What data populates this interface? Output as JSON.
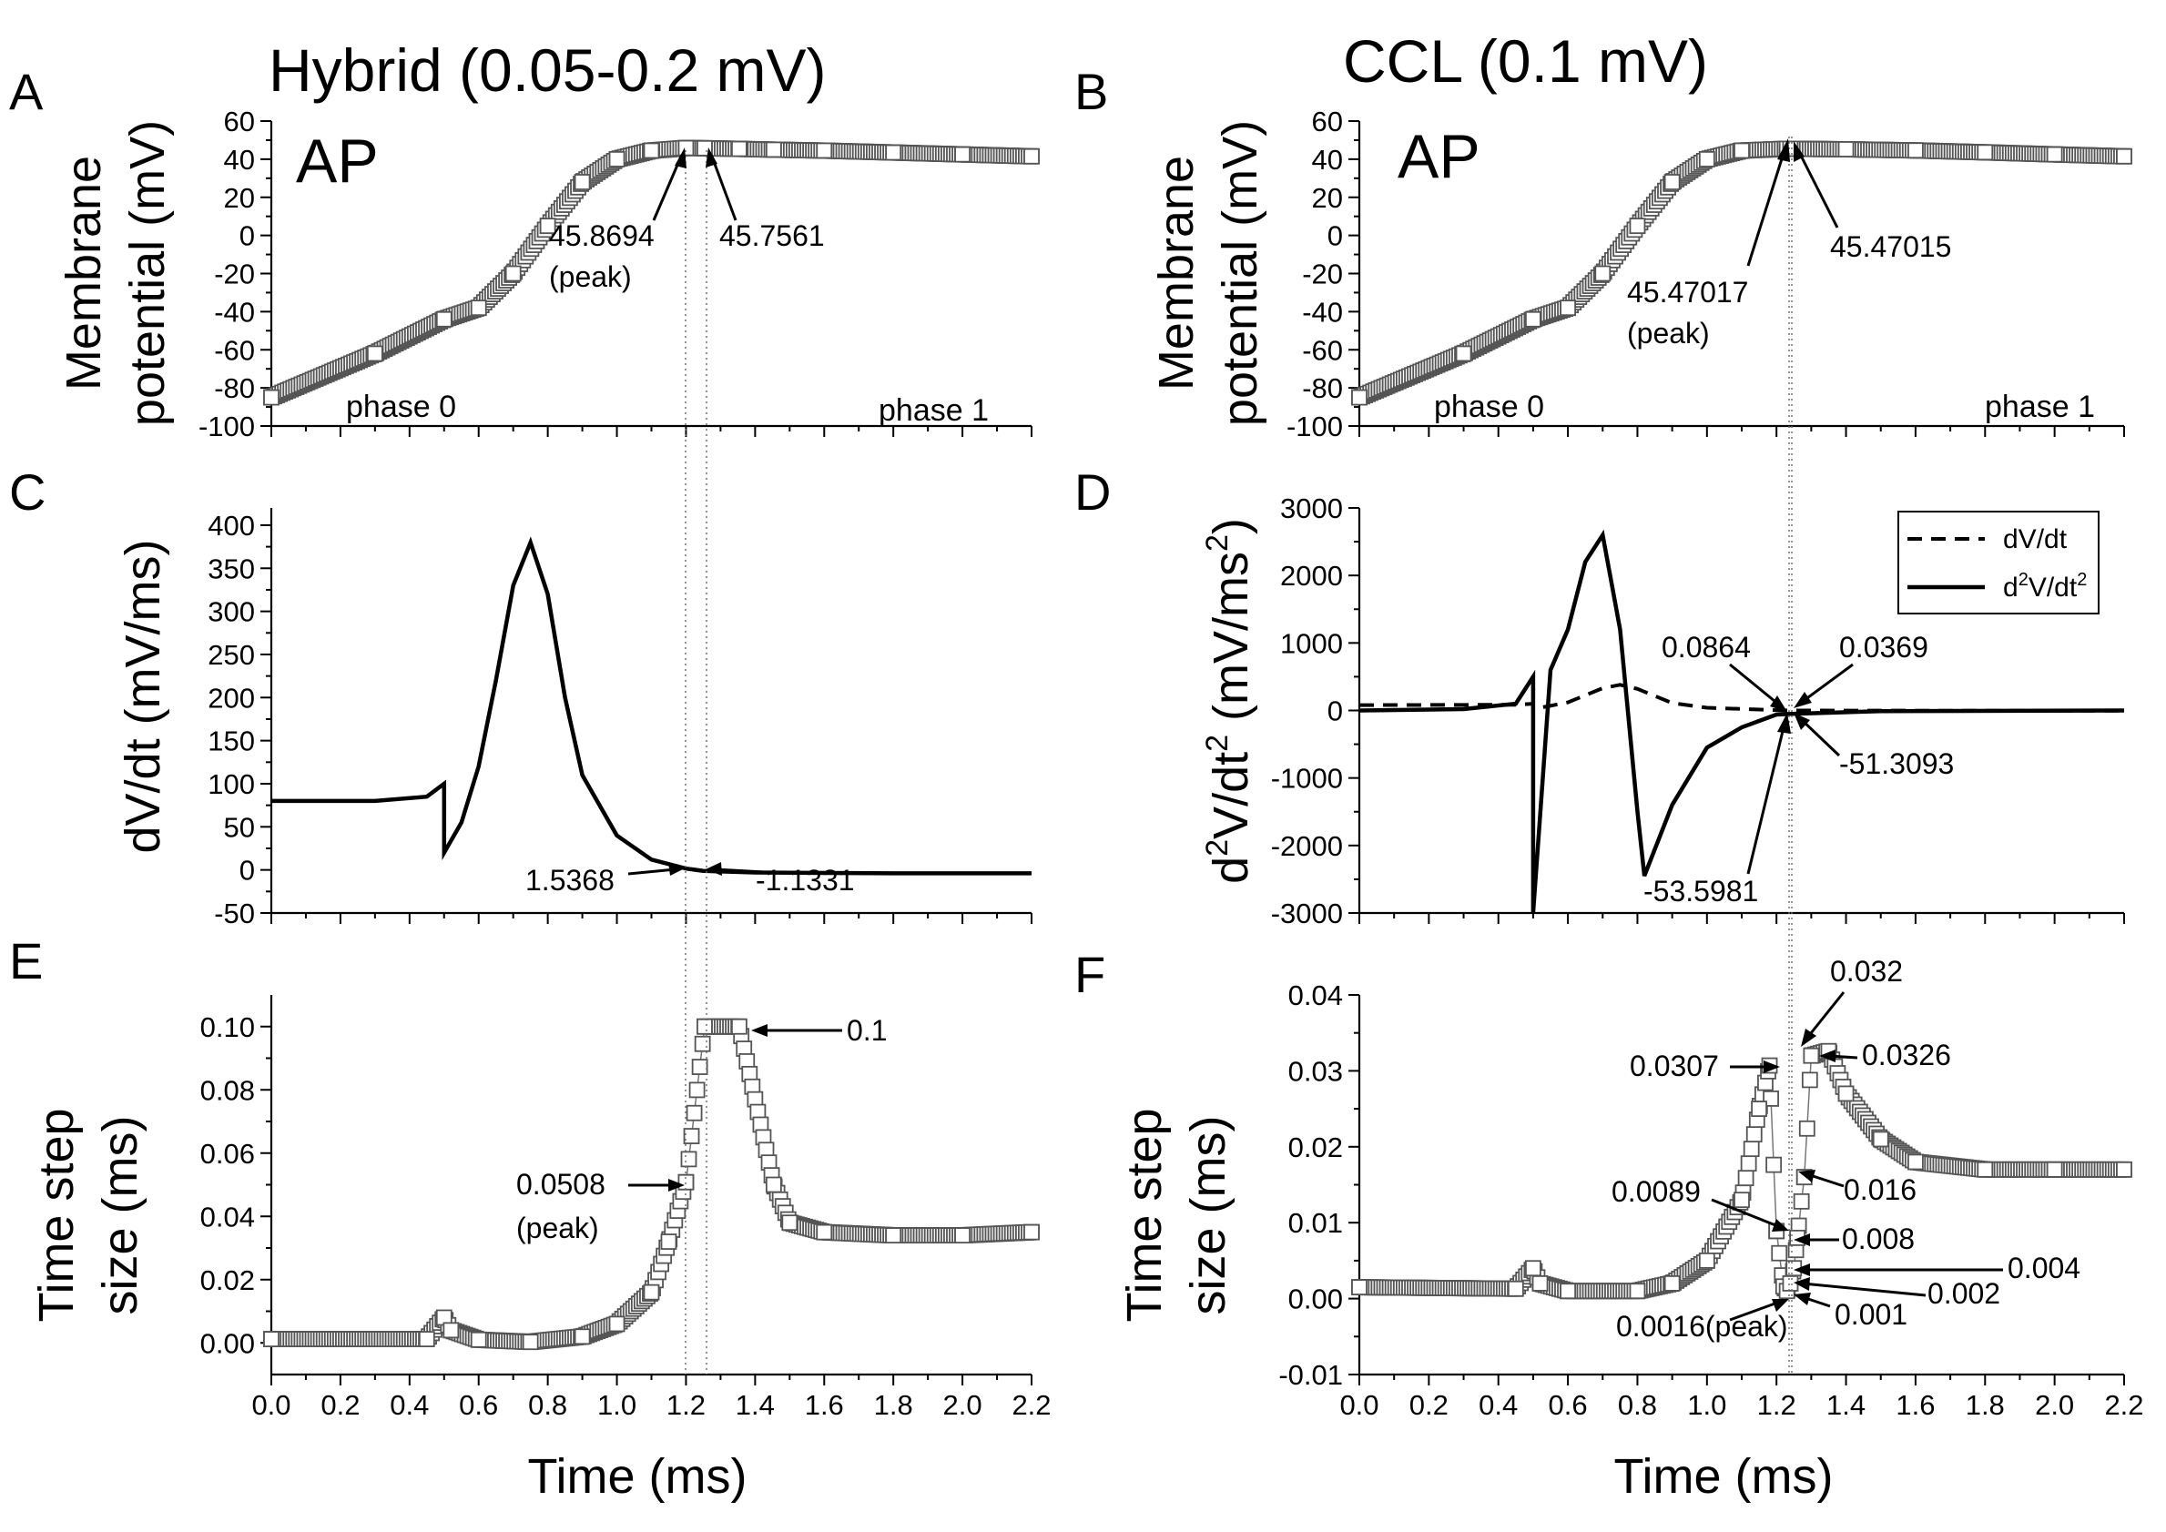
{
  "figure": {
    "panel_A": {
      "letter": "A",
      "title": "Hybrid (0.05-0.2 mV)",
      "label_ap": "AP",
      "ylabel_line1": "Membrane",
      "ylabel_line2": "potential (mV)",
      "phase0": "phase 0",
      "phase1": "phase 1",
      "annotations": [
        "45.8694",
        "(peak)",
        "45.7561"
      ]
    },
    "panel_B": {
      "letter": "B",
      "title": "CCL (0.1 mV)",
      "label_ap": "AP",
      "ylabel_line1": "Membrane",
      "ylabel_line2": "potential (mV)",
      "phase0": "phase 0",
      "phase1": "phase 1",
      "annotations": [
        "45.47017",
        "(peak)",
        "45.47015"
      ]
    },
    "panel_C": {
      "letter": "C",
      "ylabel": "dV/dt (mV/ms)",
      "annotations": [
        "1.5368",
        "-1.1331"
      ]
    },
    "panel_D": {
      "letter": "D",
      "ylabel": "d2V/dt2 (mV/ms2)",
      "legend": [
        "dV/dt",
        "d2V/dt2"
      ],
      "annotations": [
        "0.0864",
        "0.0369",
        "-51.3093",
        "-53.5981"
      ]
    },
    "panel_E": {
      "letter": "E",
      "ylabel_line1": "Time step",
      "ylabel_line2": "size (ms)",
      "xlabel": "Time (ms)",
      "annotations": [
        "0.1",
        "0.0508",
        "(peak)"
      ]
    },
    "panel_F": {
      "letter": "F",
      "ylabel_line1": "Time step",
      "ylabel_line2": "size (ms)",
      "xlabel": "Time (ms)",
      "annotations": [
        "0.032",
        "0.0307",
        "0.0326",
        "0.016",
        "0.0089",
        "0.008",
        "0.004",
        "0.002",
        "0.001",
        "0.0016(peak)"
      ]
    }
  },
  "chart_data": [
    {
      "panel": "A",
      "type": "scatter",
      "title": "Hybrid (0.05-0.2 mV)",
      "xlabel": "",
      "ylabel": "Membrane potential (mV)",
      "xlim": [
        0,
        2.2
      ],
      "ylim": [
        -100,
        60
      ],
      "yticks": [
        -100,
        -80,
        -60,
        -40,
        -20,
        0,
        20,
        40,
        60
      ],
      "marker": "open-square",
      "series": [
        {
          "x": [
            0,
            0.3,
            0.5,
            0.6,
            0.7,
            0.8,
            0.9,
            1.0,
            1.1,
            1.2,
            1.254,
            1.354,
            1.454,
            1.6,
            1.8,
            2.0,
            2.2
          ],
          "y": [
            -85,
            -62,
            -44,
            -38,
            -20,
            5,
            28,
            40,
            44.5,
            45.8694,
            45.7561,
            45.4,
            45.0,
            44.5,
            43.5,
            42.5,
            41.5
          ]
        }
      ]
    },
    {
      "panel": "B",
      "type": "scatter",
      "title": "CCL (0.1 mV)",
      "xlabel": "",
      "ylabel": "Membrane potential (mV)",
      "xlim": [
        0,
        2.2
      ],
      "ylim": [
        -100,
        60
      ],
      "yticks": [
        -100,
        -80,
        -60,
        -40,
        -20,
        0,
        20,
        40,
        60
      ],
      "marker": "open-square",
      "series": [
        {
          "x": [
            0,
            0.3,
            0.5,
            0.6,
            0.7,
            0.8,
            0.9,
            1.0,
            1.1,
            1.23,
            1.24,
            1.4,
            1.6,
            1.8,
            2.0,
            2.2
          ],
          "y": [
            -85,
            -62,
            -44,
            -38,
            -20,
            5,
            28,
            40,
            44.5,
            45.47017,
            45.47015,
            45.2,
            44.6,
            43.6,
            42.5,
            41.5
          ]
        }
      ]
    },
    {
      "panel": "C",
      "type": "line",
      "xlabel": "",
      "ylabel": "dV/dt (mV/ms)",
      "xlim": [
        0,
        2.2
      ],
      "ylim": [
        -50,
        420
      ],
      "yticks": [
        -50,
        0,
        50,
        100,
        150,
        200,
        250,
        300,
        350,
        400
      ],
      "series": [
        {
          "x": [
            0,
            0.3,
            0.45,
            0.5,
            0.5,
            0.55,
            0.6,
            0.65,
            0.7,
            0.75,
            0.8,
            0.85,
            0.9,
            1.0,
            1.1,
            1.2,
            1.25,
            1.4,
            1.8,
            2.2
          ],
          "y": [
            80,
            80,
            85,
            100,
            20,
            55,
            120,
            220,
            330,
            380,
            320,
            200,
            110,
            40,
            12,
            1.5368,
            -1.1331,
            -3,
            -4,
            -4
          ]
        }
      ]
    },
    {
      "panel": "D",
      "type": "line",
      "xlabel": "",
      "ylabel": "d2V/dt2 (mV/ms2)",
      "xlim": [
        0,
        2.2
      ],
      "ylim": [
        -3000,
        3000
      ],
      "yticks": [
        -3000,
        -2000,
        -1000,
        0,
        1000,
        2000,
        3000
      ],
      "legend": "top-right",
      "series": [
        {
          "name": "dV/dt",
          "style": "dashed",
          "x": [
            0,
            0.45,
            0.5,
            0.5,
            0.6,
            0.7,
            0.75,
            0.8,
            0.9,
            1.0,
            1.23,
            1.6,
            2.2
          ],
          "y": [
            80,
            85,
            100,
            20,
            120,
            330,
            380,
            320,
            110,
            40,
            0.0864,
            -3,
            -4
          ]
        },
        {
          "name": "d2V/dt2",
          "style": "solid",
          "x": [
            0,
            0.3,
            0.45,
            0.5,
            0.5,
            0.55,
            0.6,
            0.65,
            0.7,
            0.75,
            0.8,
            0.82,
            0.9,
            1.0,
            1.1,
            1.2,
            1.23,
            1.24,
            1.5,
            2.2
          ],
          "y": [
            0,
            20,
            100,
            500,
            -3000,
            600,
            1200,
            2200,
            2600,
            1200,
            -1500,
            -2450,
            -1400,
            -550,
            -250,
            -60,
            -53.5981,
            -51.3093,
            -10,
            0
          ]
        }
      ]
    },
    {
      "panel": "E",
      "type": "scatter",
      "xlabel": "Time (ms)",
      "ylabel": "Time step size (ms)",
      "xlim": [
        0,
        2.2
      ],
      "ylim": [
        -0.01,
        0.11
      ],
      "xticks": [
        0.0,
        0.2,
        0.4,
        0.6,
        0.8,
        1.0,
        1.2,
        1.4,
        1.6,
        1.8,
        2.0,
        2.2
      ],
      "yticks": [
        0.0,
        0.02,
        0.04,
        0.06,
        0.08,
        0.1
      ],
      "marker": "open-square",
      "series": [
        {
          "x": [
            0,
            0.45,
            0.5,
            0.52,
            0.6,
            0.75,
            0.9,
            1.0,
            1.1,
            1.15,
            1.2,
            1.254,
            1.354,
            1.454,
            1.5,
            1.6,
            1.8,
            2.0,
            2.2
          ],
          "y": [
            0.0012,
            0.0012,
            0.008,
            0.004,
            0.001,
            0.0003,
            0.002,
            0.006,
            0.016,
            0.032,
            0.0508,
            0.1,
            0.1,
            0.05,
            0.038,
            0.035,
            0.034,
            0.034,
            0.035
          ]
        }
      ]
    },
    {
      "panel": "F",
      "type": "scatter",
      "xlabel": "Time (ms)",
      "ylabel": "Time step size (ms)",
      "xlim": [
        0,
        2.2
      ],
      "ylim": [
        -0.01,
        0.04
      ],
      "xticks": [
        0.0,
        0.2,
        0.4,
        0.6,
        0.8,
        1.0,
        1.2,
        1.4,
        1.6,
        1.8,
        2.0,
        2.2
      ],
      "yticks": [
        -0.01,
        0.0,
        0.01,
        0.02,
        0.03,
        0.04
      ],
      "marker": "open-square",
      "series": [
        {
          "x": [
            0,
            0.45,
            0.5,
            0.52,
            0.6,
            0.8,
            0.9,
            1.0,
            1.1,
            1.15,
            1.18,
            1.2,
            1.22,
            1.23,
            1.24,
            1.25,
            1.26,
            1.28,
            1.3,
            1.35,
            1.4,
            1.5,
            1.6,
            1.8,
            2.0,
            2.2
          ],
          "y": [
            0.0015,
            0.0013,
            0.004,
            0.002,
            0.001,
            0.001,
            0.002,
            0.005,
            0.013,
            0.025,
            0.0307,
            0.0089,
            0.0016,
            0.001,
            0.002,
            0.004,
            0.008,
            0.016,
            0.032,
            0.0326,
            0.027,
            0.021,
            0.018,
            0.017,
            0.017,
            0.017
          ]
        }
      ]
    }
  ]
}
